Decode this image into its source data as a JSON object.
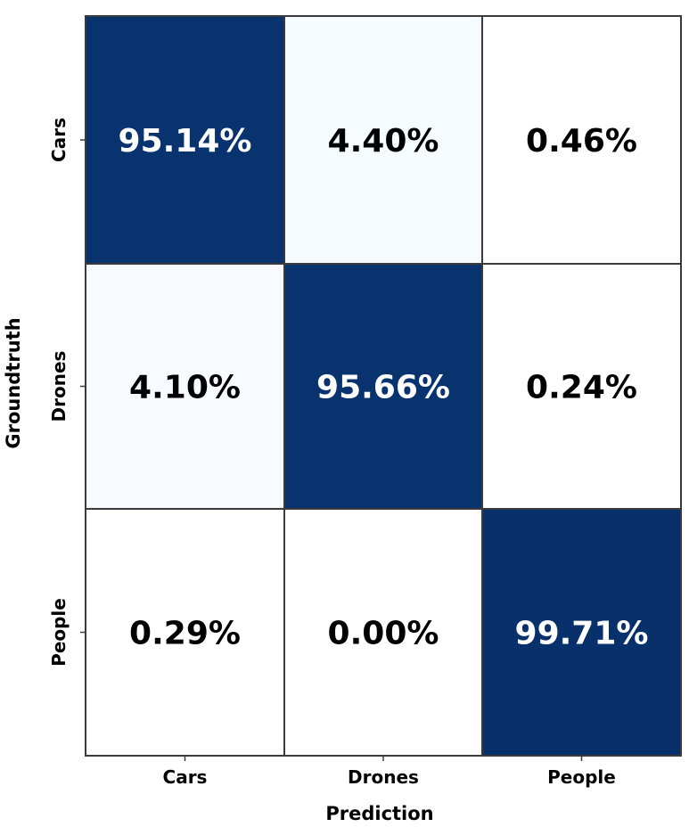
{
  "chart_data": {
    "type": "heatmap",
    "title": "",
    "xlabel": "Prediction",
    "ylabel": "Groundtruth",
    "x_categories": [
      "Cars",
      "Drones",
      "People"
    ],
    "y_categories": [
      "Cars",
      "Drones",
      "People"
    ],
    "values": [
      [
        95.14,
        4.4,
        0.46
      ],
      [
        4.1,
        95.66,
        0.24
      ],
      [
        0.29,
        0.0,
        99.71
      ]
    ],
    "value_labels": [
      [
        "95.14%",
        "4.40%",
        "0.46%"
      ],
      [
        "4.10%",
        "95.66%",
        "0.24%"
      ],
      [
        "0.29%",
        "0.00%",
        "99.71%"
      ]
    ],
    "colormap": "Blues",
    "vmin": 0,
    "vmax": 100,
    "colors": {
      "low": "#ffffff",
      "tint": "#f5faff",
      "high": "#08306b"
    },
    "grid": true
  }
}
